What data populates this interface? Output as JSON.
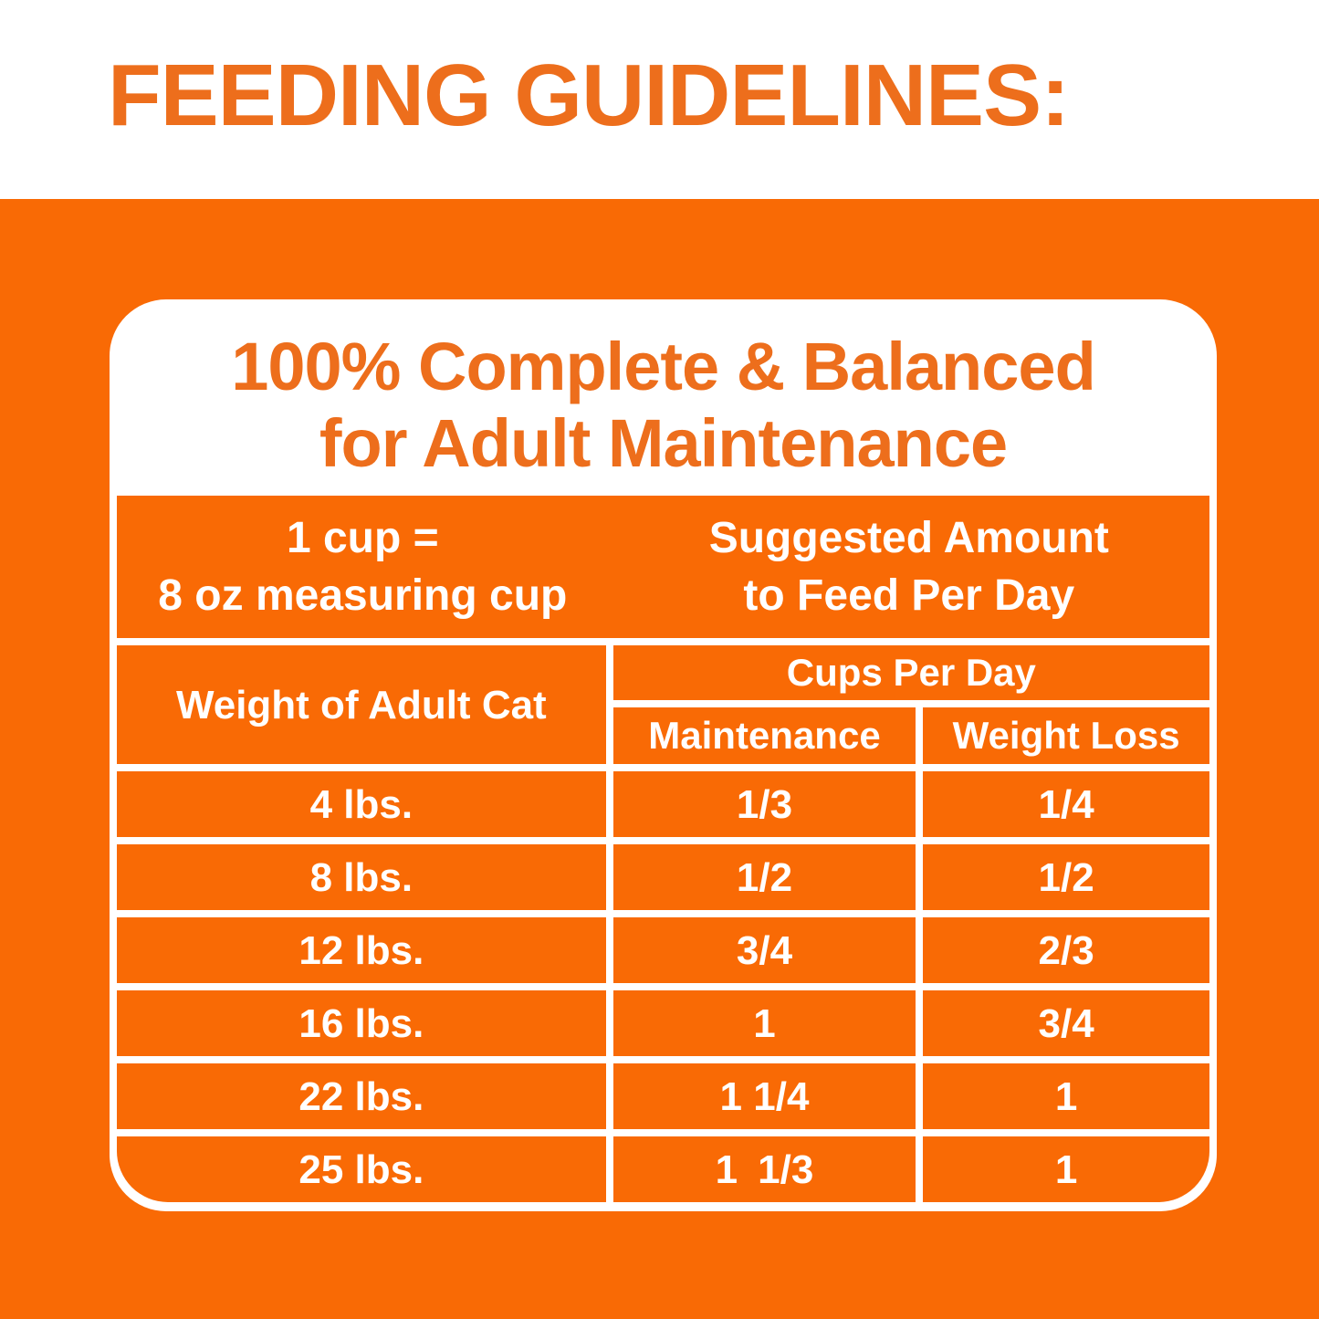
{
  "colors": {
    "orange_fill": "#F96A05",
    "heading_orange_text": "#ED6E1C",
    "table_text_white": "#FFFFFF"
  },
  "page": {
    "title": "FEEDING GUIDELINES:"
  },
  "card": {
    "title_line1": "100% Complete & Balanced",
    "title_line2": "for Adult Maintenance"
  },
  "table": {
    "header_left_line1": "1 cup =",
    "header_left_line2": "8 oz measuring cup",
    "header_right_line1": "Suggested Amount",
    "header_right_line2": "to Feed Per Day",
    "col_weight": "Weight of Adult Cat",
    "col_group": "Cups Per Day",
    "col_maintenance": "Maintenance",
    "col_weight_loss": "Weight Loss",
    "rows": [
      {
        "weight": "4 lbs.",
        "maintenance": "1/3",
        "weight_loss": "1/4"
      },
      {
        "weight": "8 lbs.",
        "maintenance": "1/2",
        "weight_loss": "1/2"
      },
      {
        "weight": "12 lbs.",
        "maintenance": "3/4",
        "weight_loss": "2/3"
      },
      {
        "weight": "16 lbs.",
        "maintenance": "1",
        "weight_loss": "3/4"
      },
      {
        "weight": "22 lbs.",
        "maintenance": "1 1/4",
        "weight_loss": "1"
      },
      {
        "weight": "25 lbs.",
        "maintenance": "1 1/3",
        "weight_loss": "1"
      }
    ]
  }
}
